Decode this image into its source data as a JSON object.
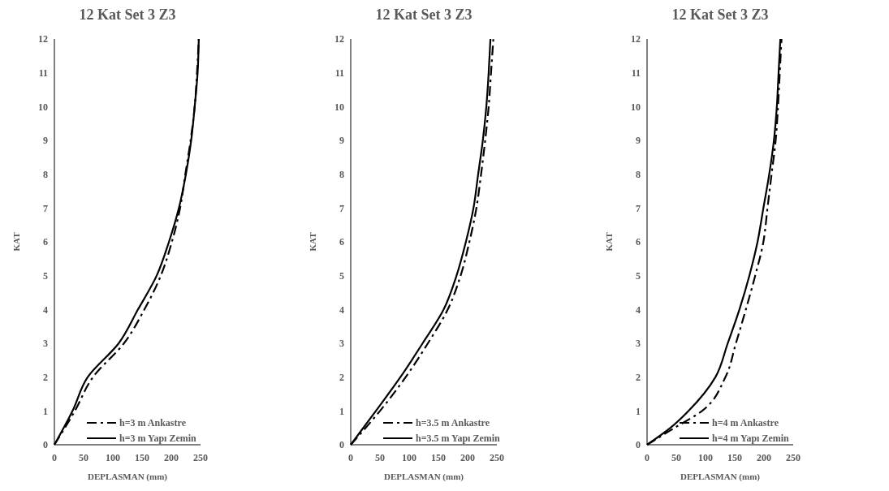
{
  "chart_data": [
    {
      "type": "line",
      "title": "12 Kat Set 3 Z3",
      "xlabel": "DEPLASMAN (mm)",
      "ylabel": "KAT",
      "xlim": [
        0,
        250
      ],
      "xticks": [
        0,
        50,
        100,
        150,
        200,
        250
      ],
      "ylim": [
        0,
        12
      ],
      "yticks": [
        0,
        1,
        2,
        3,
        4,
        5,
        6,
        7,
        8,
        9,
        10,
        11,
        12
      ],
      "grid": false,
      "legend": "bottom right",
      "marker": "none",
      "series": [
        {
          "name": "h=3 m Ankastre",
          "color": "#000000",
          "line_style": "dashed",
          "x": [
            0,
            35,
            66,
            119,
            154,
            182,
            201,
            215,
            224,
            233,
            240,
            244,
            247
          ],
          "values": [
            0,
            1,
            2,
            3,
            4,
            5,
            6,
            7,
            8,
            9,
            10,
            11,
            12
          ]
        },
        {
          "name": "h=3 m Yapı Zemin",
          "color": "#000000",
          "line_style": "solid",
          "x": [
            0,
            31,
            57,
            110,
            143,
            175,
            196,
            213,
            225,
            234,
            240,
            245,
            247
          ],
          "values": [
            0,
            1,
            2,
            3,
            4,
            5,
            6,
            7,
            8,
            9,
            10,
            11,
            12
          ]
        }
      ]
    },
    {
      "type": "line",
      "title": "12 Kat Set 3 Z3",
      "xlabel": "DEPLASMAN (mm)",
      "ylabel": "KAT",
      "xlim": [
        0,
        250
      ],
      "xticks": [
        0,
        50,
        100,
        150,
        200,
        250
      ],
      "ylim": [
        0,
        12
      ],
      "yticks": [
        0,
        1,
        2,
        3,
        4,
        5,
        6,
        7,
        8,
        9,
        10,
        11,
        12
      ],
      "grid": false,
      "legend": "bottom right",
      "marker": "none",
      "series": [
        {
          "name": "h=3.5 m Ankastre",
          "color": "#000000",
          "line_style": "dashed",
          "x": [
            0,
            50,
            94,
            132,
            166,
            188,
            203,
            215,
            223,
            230,
            236,
            240,
            244
          ],
          "values": [
            0,
            1,
            2,
            3,
            4,
            5,
            6,
            7,
            8,
            9,
            10,
            11,
            12
          ]
        },
        {
          "name": "h=3.5 m Yapı Zemin",
          "color": "#000000",
          "line_style": "solid",
          "x": [
            0,
            43,
            85,
            123,
            159,
            181,
            197,
            210,
            218,
            226,
            232,
            236,
            239
          ],
          "values": [
            0,
            1,
            2,
            3,
            4,
            5,
            6,
            7,
            8,
            9,
            10,
            11,
            12
          ]
        }
      ]
    },
    {
      "type": "line",
      "title": "12 Kat Set 3 Z3",
      "xlabel": "DEPLASMAN (mm)",
      "ylabel": "KAT",
      "xlim": [
        0,
        250
      ],
      "xticks": [
        0,
        50,
        100,
        150,
        200,
        250
      ],
      "ylim": [
        0,
        12
      ],
      "yticks": [
        0,
        1,
        2,
        3,
        4,
        5,
        6,
        7,
        8,
        9,
        10,
        11,
        12
      ],
      "grid": false,
      "legend": "bottom right",
      "marker": "none",
      "series": [
        {
          "name": "h=4 m Ankastre",
          "color": "#000000",
          "line_style": "dashed",
          "x": [
            0,
            47,
            94,
            134,
            152,
            169,
            185,
            199,
            206,
            213,
            220,
            224,
            227,
            230
          ],
          "values": [
            0,
            0.5,
            1,
            2,
            3,
            4,
            5,
            6,
            7,
            8,
            9,
            10,
            11,
            12
          ]
        },
        {
          "name": "h=4 m Yapı Zemin",
          "color": "#000000",
          "line_style": "solid",
          "x": [
            0,
            40,
            71,
            117,
            138,
            158,
            175,
            189,
            199,
            209,
            217,
            222,
            225,
            228
          ],
          "values": [
            0,
            0.5,
            1,
            2,
            3,
            4,
            5,
            6,
            7,
            8,
            9,
            10,
            11,
            12
          ]
        }
      ]
    }
  ]
}
